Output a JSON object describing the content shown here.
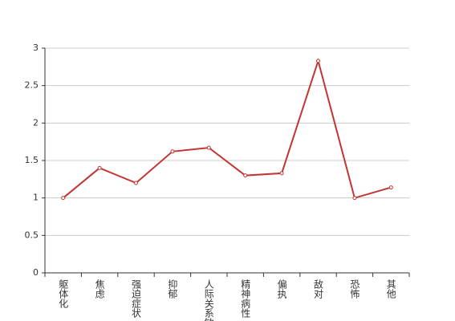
{
  "chart_data": {
    "type": "line",
    "categories": [
      "躯体化",
      "焦虑",
      "强迫症状",
      "抑郁",
      "人际关系敏感",
      "精神病性",
      "偏执",
      "敌对",
      "恐怖",
      "其他"
    ],
    "values": [
      1.0,
      1.4,
      1.2,
      1.62,
      1.67,
      1.3,
      1.33,
      2.83,
      1.0,
      1.14
    ],
    "color": "#c23531",
    "ylim": [
      0,
      3
    ],
    "yticks": [
      0,
      0.5,
      1,
      1.5,
      2,
      2.5,
      3
    ],
    "grid": true
  }
}
